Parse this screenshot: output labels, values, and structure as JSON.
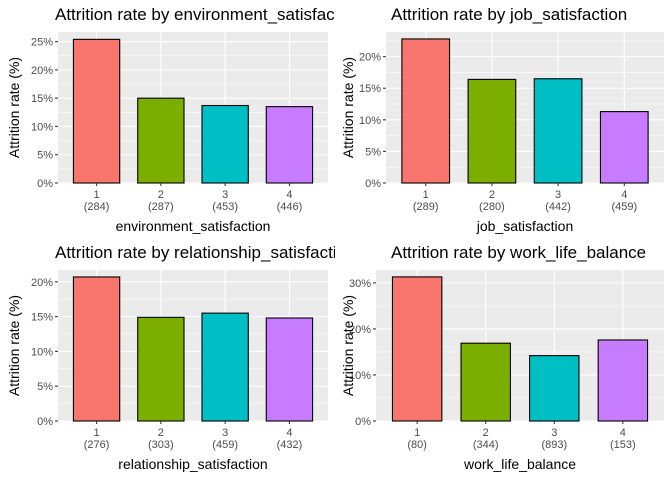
{
  "chart_data": [
    {
      "type": "bar",
      "title": "Attrition rate by environment_satisfaction",
      "xlabel": "environment_satisfaction",
      "ylabel": "Attrition rate (%)",
      "categories": [
        "1",
        "2",
        "3",
        "4"
      ],
      "counts": [
        "(284)",
        "(287)",
        "(453)",
        "(446)"
      ],
      "values": [
        25.4,
        15.0,
        13.7,
        13.5
      ],
      "colors": [
        "#F8766D",
        "#7CAE00",
        "#00BFC4",
        "#C77CFF"
      ],
      "yticks": [
        0,
        5,
        10,
        15,
        20,
        25
      ],
      "ytick_labels": [
        "0%",
        "5%",
        "10%",
        "15%",
        "20%",
        "25%"
      ],
      "ylim": [
        0,
        26.7
      ],
      "grid": true
    },
    {
      "type": "bar",
      "title": "Attrition rate by job_satisfaction",
      "xlabel": "job_satisfaction",
      "ylabel": "Attrition rate (%)",
      "categories": [
        "1",
        "2",
        "3",
        "4"
      ],
      "counts": [
        "(289)",
        "(280)",
        "(442)",
        "(459)"
      ],
      "values": [
        22.8,
        16.4,
        16.5,
        11.3
      ],
      "colors": [
        "#F8766D",
        "#7CAE00",
        "#00BFC4",
        "#C77CFF"
      ],
      "yticks": [
        0,
        5,
        10,
        15,
        20
      ],
      "ytick_labels": [
        "0%",
        "5%",
        "10%",
        "15%",
        "20%"
      ],
      "ylim": [
        0,
        23.9
      ],
      "grid": true
    },
    {
      "type": "bar",
      "title": "Attrition rate by relationship_satisfaction",
      "xlabel": "relationship_satisfaction",
      "ylabel": "Attrition rate (%)",
      "categories": [
        "1",
        "2",
        "3",
        "4"
      ],
      "counts": [
        "(276)",
        "(303)",
        "(459)",
        "(432)"
      ],
      "values": [
        20.7,
        14.9,
        15.5,
        14.8
      ],
      "colors": [
        "#F8766D",
        "#7CAE00",
        "#00BFC4",
        "#C77CFF"
      ],
      "yticks": [
        0,
        5,
        10,
        15,
        20
      ],
      "ytick_labels": [
        "0%",
        "5%",
        "10%",
        "15%",
        "20%"
      ],
      "ylim": [
        0,
        21.7
      ],
      "grid": true
    },
    {
      "type": "bar",
      "title": "Attrition rate by work_life_balance",
      "xlabel": "work_life_balance",
      "ylabel": "Attrition rate (%)",
      "categories": [
        "1",
        "2",
        "3",
        "4"
      ],
      "counts": [
        "(80)",
        "(344)",
        "(893)",
        "(153)"
      ],
      "values": [
        31.3,
        16.9,
        14.2,
        17.6
      ],
      "colors": [
        "#F8766D",
        "#7CAE00",
        "#00BFC4",
        "#C77CFF"
      ],
      "yticks": [
        0,
        10,
        20,
        30
      ],
      "ytick_labels": [
        "0%",
        "10%",
        "20%",
        "30%"
      ],
      "ylim": [
        0,
        32.8
      ],
      "grid": true
    }
  ]
}
